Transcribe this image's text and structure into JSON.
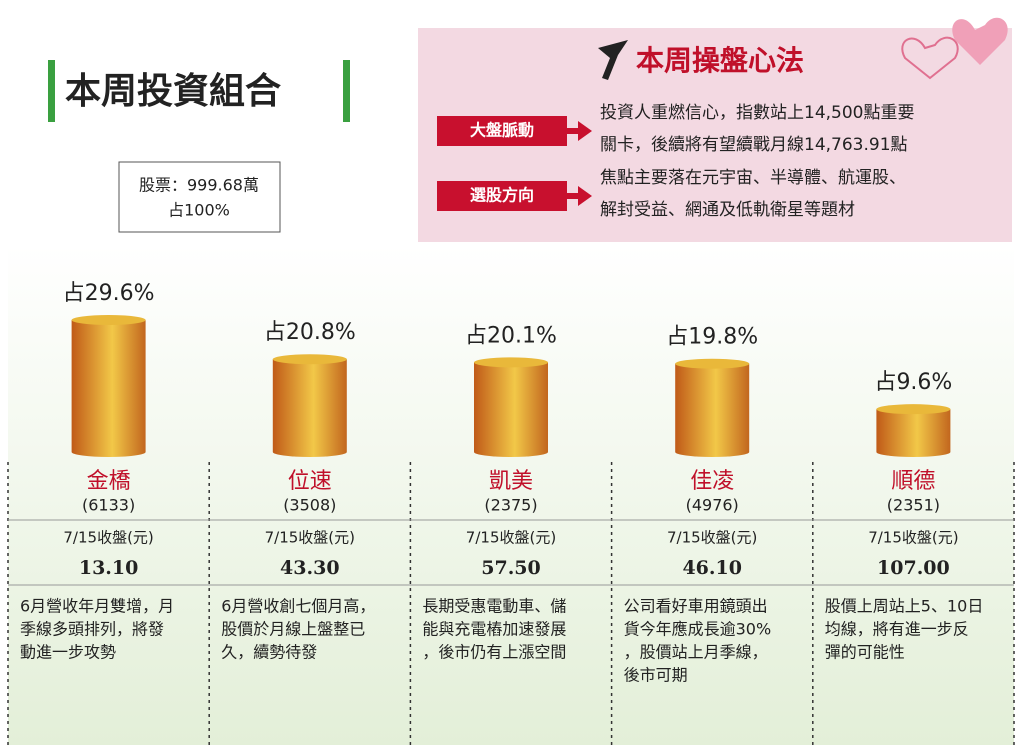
{
  "header": {
    "title": "本周投資組合",
    "total_line1": "股票：999.68萬",
    "total_line2": "占100%"
  },
  "panel": {
    "title": "本周操盤心法",
    "rows": [
      {
        "tag": "大盤脈動",
        "lines": [
          "投資人重燃信心，指數站上14,500點重要",
          "關卡，後續將有望續戰月線14,763.91點"
        ]
      },
      {
        "tag": "選股方向",
        "lines": [
          "焦點主要落在元宇宙、半導體、航運股、",
          "解封受益、網通及低軌衛星等題材"
        ]
      }
    ]
  },
  "chart_data": {
    "type": "bar",
    "categories": [
      "金橋",
      "位速",
      "凱美",
      "佳凌",
      "順德"
    ],
    "values": [
      29.6,
      20.8,
      20.1,
      19.8,
      9.6
    ],
    "value_labels": [
      "占29.6%",
      "占20.8%",
      "占20.1%",
      "占19.8%",
      "占9.6%"
    ],
    "color": "#e0a030"
  },
  "table": {
    "codes": [
      "(6133)",
      "(3508)",
      "(2375)",
      "(4976)",
      "(2351)"
    ],
    "price_label": "7/15收盤(元)",
    "prices": [
      "13.10",
      "43.30",
      "57.50",
      "46.10",
      "107.00"
    ],
    "descriptions": [
      [
        "6月營收年月雙增，月",
        "季線多頭排列，將發",
        "動進一步攻勢"
      ],
      [
        "6月營收創七個月高，",
        "股價於月線上盤整已",
        "久，續勢待發"
      ],
      [
        "長期受惠電動車、儲",
        "能與充電樁加速發展",
        "，後市仍有上漲空間"
      ],
      [
        "公司看好車用鏡頭出",
        "貨今年應成長逾30%",
        "，股價站上月季線，",
        "後市可期"
      ],
      [
        "股價上周站上5、10日",
        "均線，將有進一步反",
        "彈的可能性"
      ]
    ]
  }
}
